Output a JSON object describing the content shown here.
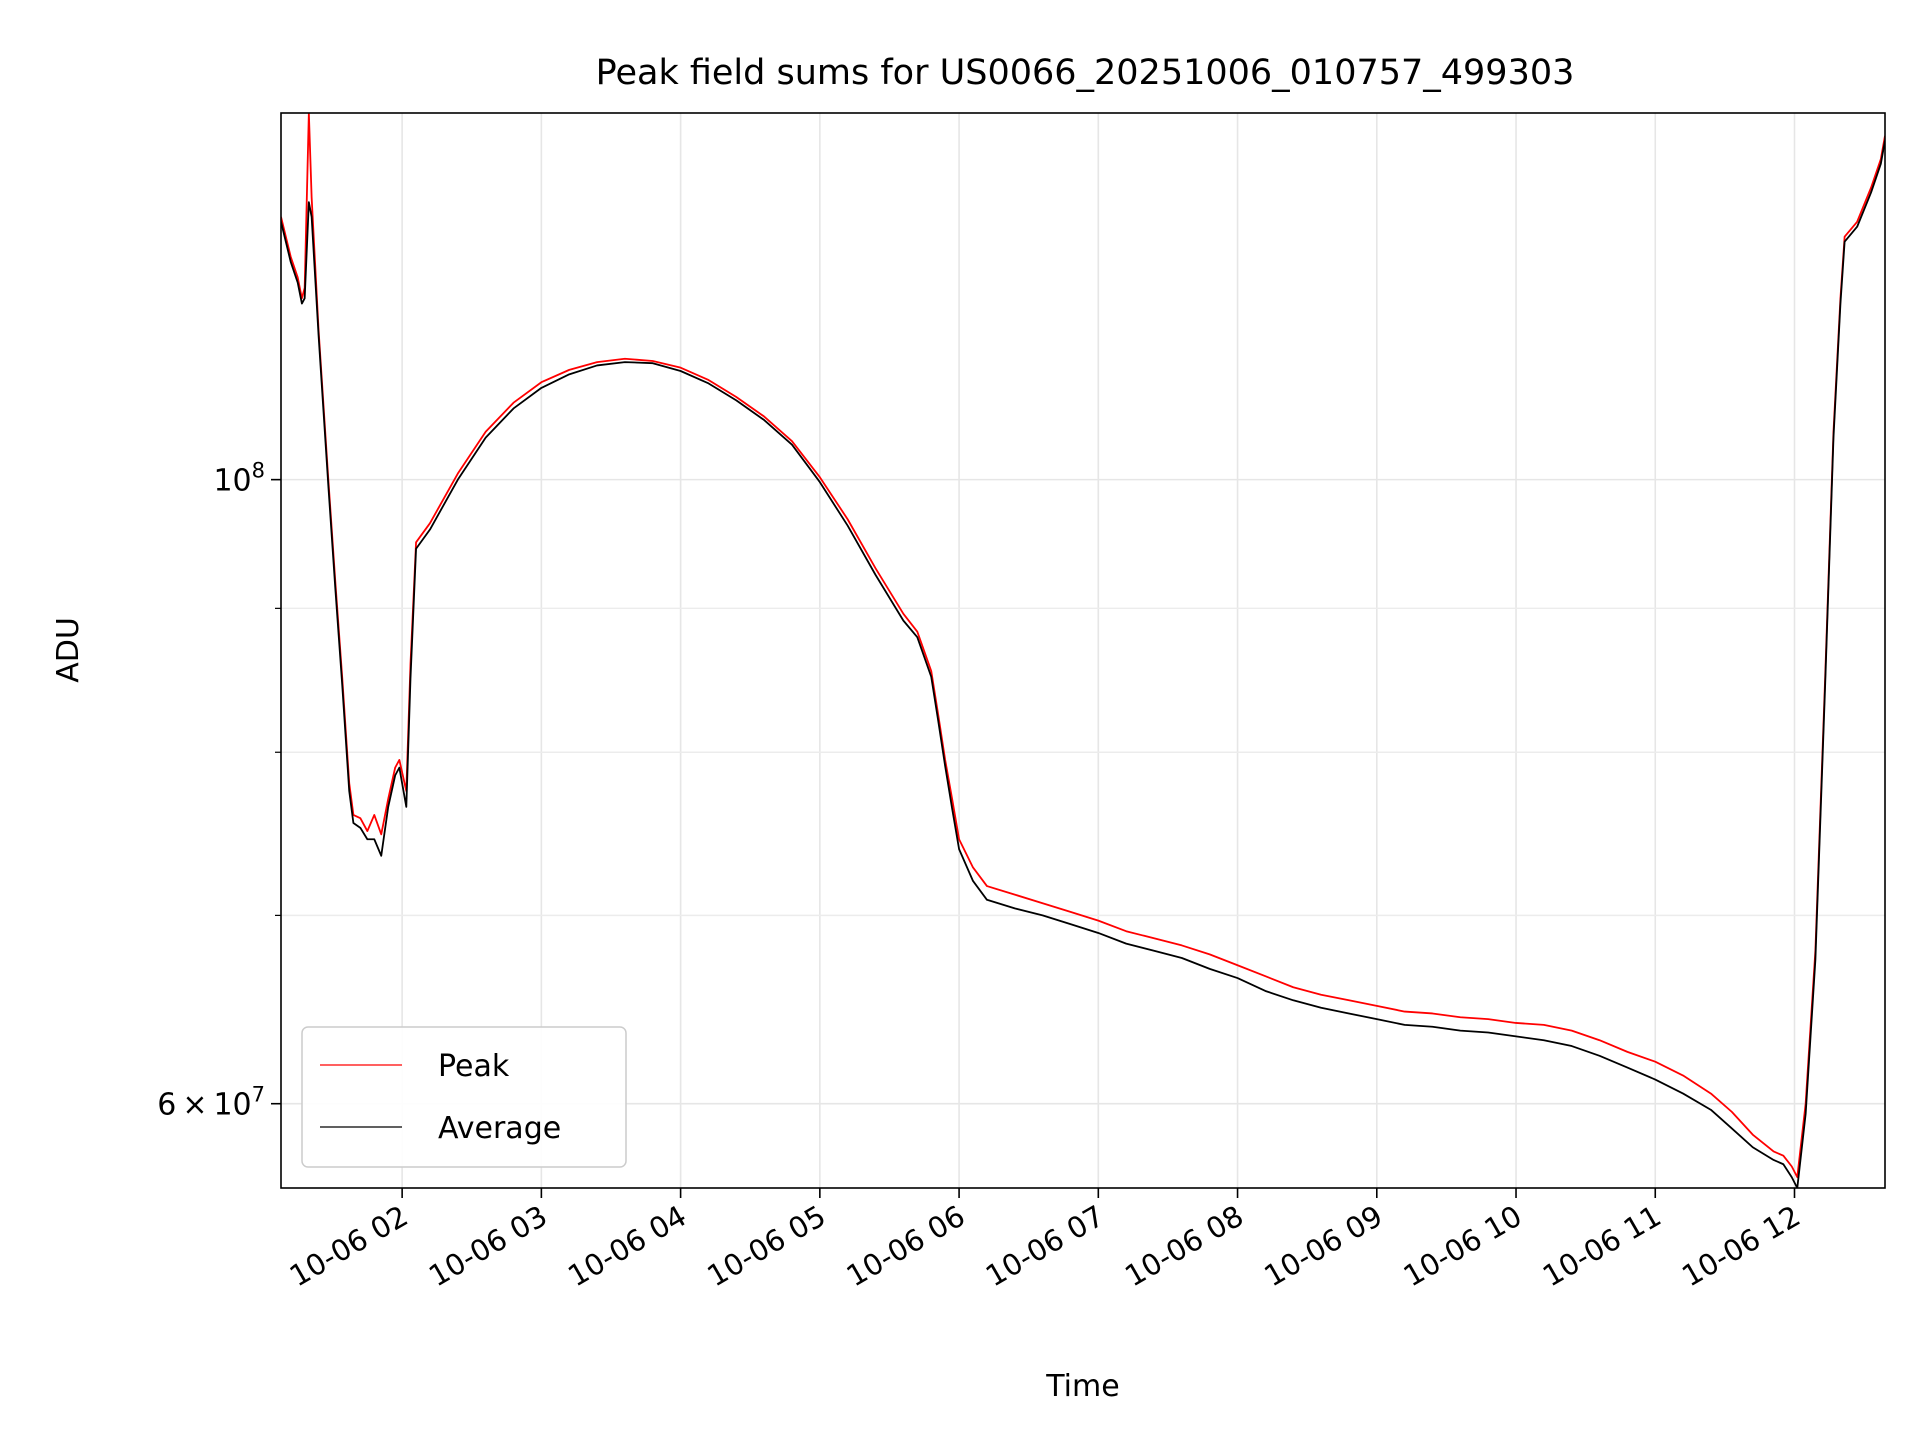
{
  "chart_data": {
    "type": "line",
    "title": "Peak field sums for US0066_20251006_010757_499303",
    "xlabel": "Time",
    "ylabel": "ADU",
    "yscale": "log",
    "ylim": [
      56000000,
      135000000
    ],
    "xlim_hours": [
      1.13,
      12.65
    ],
    "grid": true,
    "legend": {
      "placement": "lower-left",
      "entries": [
        "Peak",
        "Average"
      ]
    },
    "x_ticks": [
      {
        "hour": 2,
        "label": "10-06 02"
      },
      {
        "hour": 3,
        "label": "10-06 03"
      },
      {
        "hour": 4,
        "label": "10-06 04"
      },
      {
        "hour": 5,
        "label": "10-06 05"
      },
      {
        "hour": 6,
        "label": "10-06 06"
      },
      {
        "hour": 7,
        "label": "10-06 07"
      },
      {
        "hour": 8,
        "label": "10-06 08"
      },
      {
        "hour": 9,
        "label": "10-06 09"
      },
      {
        "hour": 10,
        "label": "10-06 10"
      },
      {
        "hour": 11,
        "label": "10-06 11"
      },
      {
        "hour": 12,
        "label": "10-06 12"
      }
    ],
    "y_major_ticks": [
      {
        "value": 60000000,
        "mantissa": "6",
        "times": "×",
        "base": "10",
        "exp": "7"
      },
      {
        "value": 100000000,
        "mantissa": "",
        "times": "",
        "base": "10",
        "exp": "8"
      }
    ],
    "y_minor_ticks": [
      70000000,
      80000000,
      90000000
    ],
    "series": [
      {
        "name": "Peak",
        "color": "#ff0000",
        "points": [
          [
            1.13,
            124000000
          ],
          [
            1.2,
            120000000
          ],
          [
            1.25,
            118000000
          ],
          [
            1.28,
            116000000
          ],
          [
            1.3,
            117000000
          ],
          [
            1.33,
            135000000
          ],
          [
            1.35,
            126000000
          ],
          [
            1.4,
            113000000
          ],
          [
            1.47,
            100000000
          ],
          [
            1.52,
            92000000
          ],
          [
            1.57,
            85000000
          ],
          [
            1.62,
            78000000
          ],
          [
            1.65,
            76000000
          ],
          [
            1.7,
            75800000
          ],
          [
            1.75,
            75000000
          ],
          [
            1.8,
            76000000
          ],
          [
            1.85,
            74800000
          ],
          [
            1.9,
            77000000
          ],
          [
            1.95,
            79000000
          ],
          [
            1.98,
            79500000
          ],
          [
            2.03,
            77500000
          ],
          [
            2.06,
            86000000
          ],
          [
            2.1,
            95000000
          ],
          [
            2.2,
            96500000
          ],
          [
            2.4,
            100500000
          ],
          [
            2.6,
            104000000
          ],
          [
            2.8,
            106500000
          ],
          [
            3.0,
            108300000
          ],
          [
            3.2,
            109400000
          ],
          [
            3.4,
            110100000
          ],
          [
            3.6,
            110400000
          ],
          [
            3.8,
            110200000
          ],
          [
            4.0,
            109600000
          ],
          [
            4.2,
            108500000
          ],
          [
            4.4,
            107000000
          ],
          [
            4.6,
            105300000
          ],
          [
            4.8,
            103200000
          ],
          [
            5.0,
            100200000
          ],
          [
            5.2,
            96800000
          ],
          [
            5.4,
            93000000
          ],
          [
            5.6,
            89600000
          ],
          [
            5.7,
            88300000
          ],
          [
            5.8,
            85500000
          ],
          [
            5.85,
            82500000
          ],
          [
            5.9,
            79500000
          ],
          [
            5.95,
            77000000
          ],
          [
            6.0,
            74500000
          ],
          [
            6.1,
            72800000
          ],
          [
            6.2,
            71700000
          ],
          [
            6.4,
            71200000
          ],
          [
            6.6,
            70700000
          ],
          [
            6.8,
            70200000
          ],
          [
            7.0,
            69700000
          ],
          [
            7.2,
            69100000
          ],
          [
            7.4,
            68700000
          ],
          [
            7.6,
            68300000
          ],
          [
            7.8,
            67800000
          ],
          [
            8.0,
            67200000
          ],
          [
            8.2,
            66600000
          ],
          [
            8.4,
            66000000
          ],
          [
            8.6,
            65600000
          ],
          [
            8.8,
            65300000
          ],
          [
            9.0,
            65000000
          ],
          [
            9.2,
            64700000
          ],
          [
            9.4,
            64600000
          ],
          [
            9.6,
            64400000
          ],
          [
            9.8,
            64300000
          ],
          [
            10.0,
            64100000
          ],
          [
            10.2,
            64000000
          ],
          [
            10.4,
            63700000
          ],
          [
            10.6,
            63200000
          ],
          [
            10.8,
            62600000
          ],
          [
            11.0,
            62100000
          ],
          [
            11.2,
            61400000
          ],
          [
            11.4,
            60500000
          ],
          [
            11.55,
            59600000
          ],
          [
            11.7,
            58500000
          ],
          [
            11.85,
            57700000
          ],
          [
            11.92,
            57500000
          ],
          [
            11.98,
            57000000
          ],
          [
            12.02,
            56500000
          ],
          [
            12.08,
            60000000
          ],
          [
            12.15,
            68000000
          ],
          [
            12.22,
            85000000
          ],
          [
            12.28,
            104000000
          ],
          [
            12.33,
            116000000
          ],
          [
            12.36,
            122000000
          ],
          [
            12.45,
            123500000
          ],
          [
            12.55,
            127000000
          ],
          [
            12.62,
            130000000
          ],
          [
            12.65,
            132500000
          ]
        ]
      },
      {
        "name": "Average",
        "color": "#000000",
        "points": [
          [
            1.13,
            123500000
          ],
          [
            1.2,
            119500000
          ],
          [
            1.25,
            117500000
          ],
          [
            1.28,
            115500000
          ],
          [
            1.3,
            116000000
          ],
          [
            1.33,
            125500000
          ],
          [
            1.35,
            124000000
          ],
          [
            1.4,
            112500000
          ],
          [
            1.47,
            99500000
          ],
          [
            1.52,
            91500000
          ],
          [
            1.57,
            84500000
          ],
          [
            1.62,
            77500000
          ],
          [
            1.65,
            75500000
          ],
          [
            1.7,
            75200000
          ],
          [
            1.75,
            74500000
          ],
          [
            1.8,
            74500000
          ],
          [
            1.85,
            73500000
          ],
          [
            1.9,
            76500000
          ],
          [
            1.95,
            78500000
          ],
          [
            1.98,
            79000000
          ],
          [
            2.03,
            76500000
          ],
          [
            2.06,
            85000000
          ],
          [
            2.1,
            94500000
          ],
          [
            2.2,
            96000000
          ],
          [
            2.4,
            100000000
          ],
          [
            2.6,
            103500000
          ],
          [
            2.8,
            106000000
          ],
          [
            3.0,
            107800000
          ],
          [
            3.2,
            109000000
          ],
          [
            3.4,
            109800000
          ],
          [
            3.6,
            110100000
          ],
          [
            3.8,
            110000000
          ],
          [
            4.0,
            109300000
          ],
          [
            4.2,
            108200000
          ],
          [
            4.4,
            106700000
          ],
          [
            4.6,
            105000000
          ],
          [
            4.8,
            102900000
          ],
          [
            5.0,
            99800000
          ],
          [
            5.2,
            96300000
          ],
          [
            5.4,
            92500000
          ],
          [
            5.6,
            89100000
          ],
          [
            5.7,
            87900000
          ],
          [
            5.8,
            85100000
          ],
          [
            5.85,
            82100000
          ],
          [
            5.9,
            79100000
          ],
          [
            5.95,
            76400000
          ],
          [
            6.0,
            73900000
          ],
          [
            6.1,
            72000000
          ],
          [
            6.2,
            70900000
          ],
          [
            6.4,
            70400000
          ],
          [
            6.6,
            70000000
          ],
          [
            6.8,
            69500000
          ],
          [
            7.0,
            69000000
          ],
          [
            7.2,
            68400000
          ],
          [
            7.4,
            68000000
          ],
          [
            7.6,
            67600000
          ],
          [
            7.8,
            67000000
          ],
          [
            8.0,
            66500000
          ],
          [
            8.2,
            65800000
          ],
          [
            8.4,
            65300000
          ],
          [
            8.6,
            64900000
          ],
          [
            8.8,
            64600000
          ],
          [
            9.0,
            64300000
          ],
          [
            9.2,
            64000000
          ],
          [
            9.4,
            63900000
          ],
          [
            9.6,
            63700000
          ],
          [
            9.8,
            63600000
          ],
          [
            10.0,
            63400000
          ],
          [
            10.2,
            63200000
          ],
          [
            10.4,
            62900000
          ],
          [
            10.6,
            62400000
          ],
          [
            10.8,
            61800000
          ],
          [
            11.0,
            61200000
          ],
          [
            11.2,
            60500000
          ],
          [
            11.4,
            59700000
          ],
          [
            11.55,
            58800000
          ],
          [
            11.7,
            57900000
          ],
          [
            11.85,
            57300000
          ],
          [
            11.92,
            57100000
          ],
          [
            11.98,
            56500000
          ],
          [
            12.02,
            56000000
          ],
          [
            12.08,
            59500000
          ],
          [
            12.15,
            67500000
          ],
          [
            12.22,
            84500000
          ],
          [
            12.28,
            103500000
          ],
          [
            12.33,
            115500000
          ],
          [
            12.36,
            121500000
          ],
          [
            12.45,
            123000000
          ],
          [
            12.55,
            126500000
          ],
          [
            12.62,
            129500000
          ],
          [
            12.65,
            132000000
          ]
        ]
      }
    ]
  }
}
